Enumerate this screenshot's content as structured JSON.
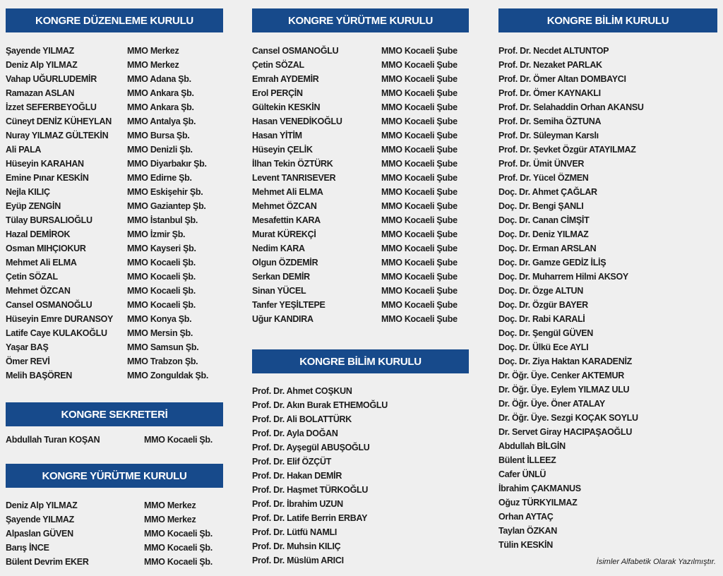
{
  "sections": [
    {
      "title": "KONGRE DÜZENLEME KURULU",
      "members": [
        [
          "Şayende YILMAZ",
          "MMO Merkez"
        ],
        [
          "Deniz Alp YILMAZ",
          "MMO Merkez"
        ],
        [
          "Vahap UĞURLUDEMİR",
          "MMO Adana Şb."
        ],
        [
          "Ramazan ASLAN",
          "MMO Ankara Şb."
        ],
        [
          "İzzet SEFERBEYOĞLU",
          "MMO Ankara Şb."
        ],
        [
          "Cüneyt DENİZ KÜHEYLAN",
          "MMO Antalya Şb."
        ],
        [
          "Nuray YILMAZ GÜLTEKİN",
          "MMO Bursa Şb."
        ],
        [
          "Ali PALA",
          "MMO Denizli Şb."
        ],
        [
          "Hüseyin KARAHAN",
          "MMO Diyarbakır Şb."
        ],
        [
          "Emine Pınar KESKİN",
          "MMO Edirne Şb."
        ],
        [
          "Nejla KILIÇ",
          "MMO Eskişehir Şb."
        ],
        [
          "Eyüp ZENGİN",
          "MMO Gaziantep Şb."
        ],
        [
          "Tülay BURSALIOĞLU",
          "MMO İstanbul Şb."
        ],
        [
          "Hazal DEMİROK",
          "MMO İzmir Şb."
        ],
        [
          "Osman MIHÇIOKUR",
          "MMO Kayseri Şb."
        ],
        [
          "Mehmet Ali ELMA",
          "MMO Kocaeli Şb."
        ],
        [
          "Çetin SÖZAL",
          "MMO Kocaeli Şb."
        ],
        [
          "Mehmet ÖZCAN",
          "MMO Kocaeli Şb."
        ],
        [
          "Cansel OSMANOĞLU",
          "MMO Kocaeli Şb."
        ],
        [
          "Hüseyin Emre DURANSOY",
          "MMO Konya Şb."
        ],
        [
          "Latife Caye KULAKOĞLU",
          "MMO Mersin Şb."
        ],
        [
          "Yaşar BAŞ",
          "MMO Samsun Şb."
        ],
        [
          "Ömer REVİ",
          "MMO Trabzon Şb."
        ],
        [
          "Melih BAŞÖREN",
          "MMO Zonguldak Şb."
        ]
      ]
    },
    {
      "title": "KONGRE SEKRETERİ",
      "members": [
        [
          "Abdullah Turan KOŞAN",
          "MMO Kocaeli Şb."
        ]
      ]
    },
    {
      "title": "KONGRE YÜRÜTME KURULU",
      "members": [
        [
          "Deniz Alp YILMAZ",
          "MMO Merkez"
        ],
        [
          "Şayende YILMAZ",
          "MMO Merkez"
        ],
        [
          "Alpaslan GÜVEN",
          "MMO Kocaeli Şb."
        ],
        [
          "Barış İNCE",
          "MMO Kocaeli Şb."
        ],
        [
          "Bülent Devrim EKER",
          "MMO Kocaeli Şb."
        ]
      ]
    },
    {
      "title": "KONGRE YÜRÜTME KURULU",
      "members": [
        [
          "Cansel OSMANOĞLU",
          "MMO Kocaeli Şube"
        ],
        [
          "Çetin SÖZAL",
          "MMO Kocaeli Şube"
        ],
        [
          "Emrah AYDEMİR",
          "MMO Kocaeli Şube"
        ],
        [
          "Erol PERÇİN",
          "MMO Kocaeli Şube"
        ],
        [
          "Gültekin KESKİN",
          "MMO Kocaeli Şube"
        ],
        [
          "Hasan VENEDİKOĞLU",
          "MMO Kocaeli Şube"
        ],
        [
          "Hasan YİTİM",
          "MMO Kocaeli Şube"
        ],
        [
          "Hüseyin ÇELİK",
          "MMO Kocaeli Şube"
        ],
        [
          "İlhan Tekin ÖZTÜRK",
          "MMO Kocaeli Şube"
        ],
        [
          "Levent TANRISEVER",
          "MMO Kocaeli Şube"
        ],
        [
          "Mehmet Ali ELMA",
          "MMO Kocaeli Şube"
        ],
        [
          "Mehmet ÖZCAN",
          "MMO Kocaeli Şube"
        ],
        [
          "Mesafettin KARA",
          "MMO Kocaeli Şube"
        ],
        [
          "Murat KÜREKÇİ",
          "MMO Kocaeli Şube"
        ],
        [
          "Nedim KARA",
          "MMO Kocaeli Şube"
        ],
        [
          "Olgun ÖZDEMİR",
          "MMO Kocaeli Şube"
        ],
        [
          "Serkan DEMİR",
          "MMO Kocaeli Şube"
        ],
        [
          "Sinan YÜCEL",
          "MMO Kocaeli Şube"
        ],
        [
          "Tanfer YEŞİLTEPE",
          "MMO Kocaeli Şube"
        ],
        [
          "Uğur KANDIRA",
          "MMO Kocaeli Şube"
        ]
      ]
    },
    {
      "title": "KONGRE BİLİM KURULU",
      "members": [
        [
          "Prof. Dr. Ahmet COŞKUN"
        ],
        [
          "Prof. Dr. Akın Burak ETHEMOĞLU"
        ],
        [
          "Prof. Dr. Ali BOLATTÜRK"
        ],
        [
          "Prof. Dr. Ayla DOĞAN"
        ],
        [
          "Prof. Dr. Ayşegül ABUŞOĞLU"
        ],
        [
          "Prof. Dr. Elif ÖZÇÜT"
        ],
        [
          "Prof. Dr. Hakan DEMİR"
        ],
        [
          "Prof. Dr. Haşmet TÜRKOĞLU"
        ],
        [
          "Prof. Dr. İbrahim UZUN"
        ],
        [
          "Prof. Dr. Latife Berrin ERBAY"
        ],
        [
          "Prof. Dr. Lütfü NAMLI"
        ],
        [
          "Prof. Dr. Muhsin KILIÇ"
        ],
        [
          "Prof. Dr. Müslüm ARICI"
        ]
      ]
    },
    {
      "title": "KONGRE BİLİM KURULU",
      "members": [
        [
          "Prof. Dr. Necdet ALTUNTOP"
        ],
        [
          "Prof. Dr. Nezaket PARLAK"
        ],
        [
          "Prof. Dr. Ömer Altan DOMBAYCI"
        ],
        [
          "Prof. Dr. Ömer KAYNAKLI"
        ],
        [
          "Prof. Dr. Selahaddin Orhan AKANSU"
        ],
        [
          "Prof. Dr. Semiha ÖZTUNA"
        ],
        [
          "Prof. Dr. Süleyman Karslı"
        ],
        [
          "Prof. Dr. Şevket Özgür ATAYILMAZ"
        ],
        [
          "Prof. Dr. Ümit ÜNVER"
        ],
        [
          "Prof. Dr. Yücel ÖZMEN"
        ],
        [
          "Doç. Dr. Ahmet ÇAĞLAR"
        ],
        [
          "Doç. Dr. Bengi ŞANLI"
        ],
        [
          "Doç. Dr. Canan CİMŞİT"
        ],
        [
          "Doç. Dr. Deniz YILMAZ"
        ],
        [
          "Doç. Dr. Erman ARSLAN"
        ],
        [
          "Doç. Dr. Gamze GEDİZ İLİŞ"
        ],
        [
          "Doç. Dr. Muharrem Hilmi AKSOY"
        ],
        [
          "Doç. Dr. Özge ALTUN"
        ],
        [
          "Doç. Dr. Özgür BAYER"
        ],
        [
          "Doç. Dr. Rabi KARALİ"
        ],
        [
          "Doç. Dr. Şengül GÜVEN"
        ],
        [
          "Doç. Dr. Ülkü Ece AYLI"
        ],
        [
          "Doç. Dr. Ziya Haktan KARADENİZ"
        ],
        [
          "Dr. Öğr. Üye. Cenker AKTEMUR"
        ],
        [
          "Dr. Öğr. Üye. Eylem YILMAZ ULU"
        ],
        [
          "Dr. Öğr. Üye. Öner ATALAY"
        ],
        [
          "Dr. Öğr. Üye. Sezgi KOÇAK SOYLU"
        ],
        [
          "Dr. Servet Giray HACIPAŞAOĞLU"
        ],
        [
          "Abdullah BİLGİN"
        ],
        [
          "Bülent İLLEEZ"
        ],
        [
          "Cafer ÜNLÜ"
        ],
        [
          "İbrahim ÇAKMANUS"
        ],
        [
          "Oğuz TÜRKYILMAZ"
        ],
        [
          "Orhan AYTAÇ"
        ],
        [
          "Taylan ÖZKAN"
        ],
        [
          "Tülin KESKİN"
        ]
      ]
    }
  ],
  "footnote": "İsimler Alfabetik Olarak Yazılmıştır."
}
